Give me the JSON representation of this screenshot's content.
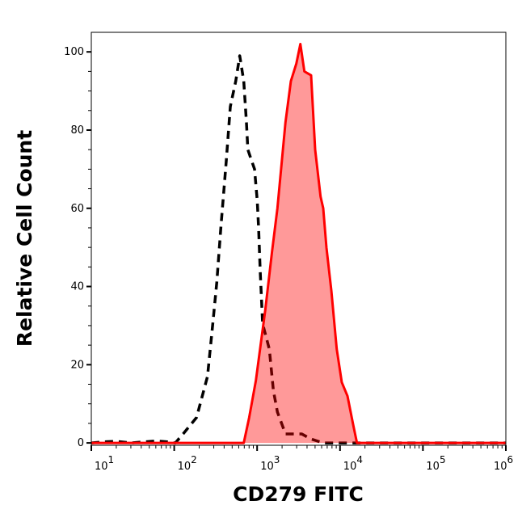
{
  "chart_data": {
    "type": "area",
    "xlabel": "CD279 FITC",
    "ylabel": "Relative Cell Count",
    "x_scale": "log",
    "xlim": [
      10,
      1000000
    ],
    "ylim": [
      -0.6,
      105
    ],
    "x_ticks": [
      {
        "base": "10",
        "exp": "1",
        "value": 10
      },
      {
        "base": "10",
        "exp": "2",
        "value": 100
      },
      {
        "base": "10",
        "exp": "3",
        "value": 1000
      },
      {
        "base": "10",
        "exp": "4",
        "value": 10000
      },
      {
        "base": "10",
        "exp": "5",
        "value": 100000
      },
      {
        "base": "10",
        "exp": "6",
        "value": 1000000
      }
    ],
    "y_ticks": [
      "0",
      "20",
      "40",
      "60",
      "80",
      "100"
    ],
    "grid": false,
    "legend": "none",
    "series": [
      {
        "style": "dashed-line",
        "color": "#000000",
        "x": [
          8,
          15,
          20,
          30,
          45,
          60,
          80,
          103,
          128,
          186,
          252,
          292,
          326,
          365,
          424,
          475,
          552,
          617,
          690,
          743,
          773,
          931,
          1003,
          1042,
          1089,
          1165,
          1403,
          1571,
          1757,
          2198,
          3443,
          4478,
          6271,
          20000,
          100000,
          1000000
        ],
        "y": [
          0,
          0.3,
          0.4,
          0,
          0.3,
          0.5,
          0.3,
          0,
          2.3,
          6.5,
          17,
          30.5,
          41,
          55,
          72,
          86,
          92.5,
          99,
          92.5,
          82,
          75,
          70,
          62,
          55,
          44,
          30.5,
          24,
          13.4,
          7.9,
          2.3,
          2.3,
          1,
          0,
          0,
          0,
          0
        ]
      },
      {
        "style": "filled-line",
        "color": "#ff0000",
        "fill": "#ff9999",
        "x": [
          8,
          100,
          690,
          802,
          967,
          1254,
          1515,
          1757,
          2198,
          2553,
          2972,
          3323,
          3715,
          4478,
          5012,
          5823,
          6271,
          6855,
          7852,
          9125,
          10500,
          12300,
          14300,
          16000,
          100000,
          1000000
        ],
        "y": [
          0,
          0,
          0,
          6.5,
          16,
          34,
          49,
          60,
          82,
          92.5,
          97,
          102,
          95,
          94,
          75,
          63,
          60,
          50,
          39,
          24,
          15.5,
          12,
          5,
          0,
          0,
          0
        ]
      }
    ]
  }
}
